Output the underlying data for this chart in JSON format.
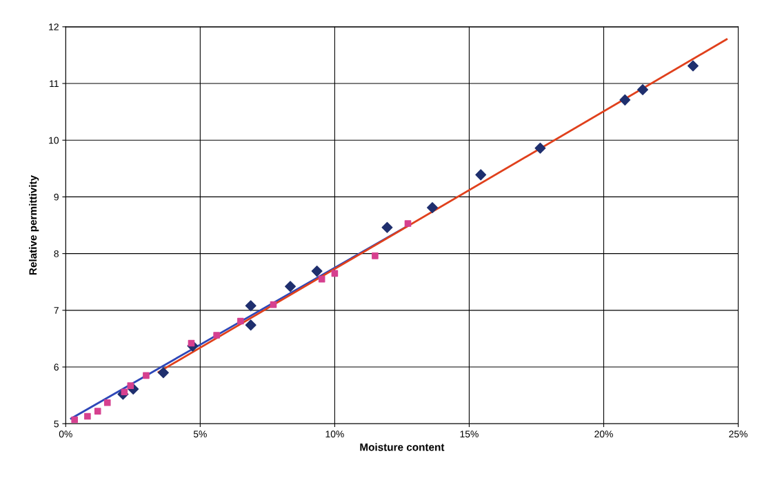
{
  "chart_data": {
    "type": "scatter",
    "xlabel": "Moisture content",
    "ylabel": "Relative permittivity",
    "xlim": [
      0,
      25
    ],
    "xticks": [
      {
        "value": 0,
        "label": "0%"
      },
      {
        "value": 5,
        "label": "5%"
      },
      {
        "value": 10,
        "label": "10%"
      },
      {
        "value": 15,
        "label": "15%"
      },
      {
        "value": 20,
        "label": "20%"
      },
      {
        "value": 25,
        "label": "25%"
      }
    ],
    "ylim": [
      5,
      12
    ],
    "yticks": [
      5,
      6,
      7,
      8,
      9,
      10,
      11,
      12
    ],
    "grid": true,
    "legend": false,
    "series": [
      {
        "marker": "diamond",
        "color": "#1f2f6e",
        "x": [
          2.13,
          2.51,
          3.63,
          4.72,
          6.88,
          6.88,
          8.35,
          9.34,
          11.95,
          13.63,
          15.43,
          17.64,
          20.79,
          21.45,
          23.32
        ],
        "values": [
          5.52,
          5.61,
          5.9,
          6.37,
          7.08,
          6.74,
          7.42,
          7.69,
          8.46,
          8.81,
          9.39,
          9.86,
          10.71,
          10.89,
          11.31
        ]
      },
      {
        "marker": "square",
        "color": "#d6408f",
        "x": [
          0.33,
          0.81,
          1.19,
          1.55,
          2.18,
          2.41,
          2.99,
          4.67,
          5.61,
          6.5,
          7.72,
          9.52,
          10.0,
          11.5,
          12.72
        ],
        "values": [
          5.07,
          5.13,
          5.22,
          5.37,
          5.56,
          5.67,
          5.85,
          6.42,
          6.56,
          6.81,
          7.1,
          7.55,
          7.65,
          7.96,
          8.53
        ]
      },
      {
        "type": "line",
        "marker": "none",
        "color": "#2e47b8",
        "x": [
          0.2,
          12.72
        ],
        "values": [
          5.09,
          8.49
        ]
      },
      {
        "type": "line",
        "marker": "none",
        "color": "#e0401c",
        "x": [
          3.45,
          24.57
        ],
        "values": [
          5.91,
          11.78
        ]
      }
    ]
  }
}
